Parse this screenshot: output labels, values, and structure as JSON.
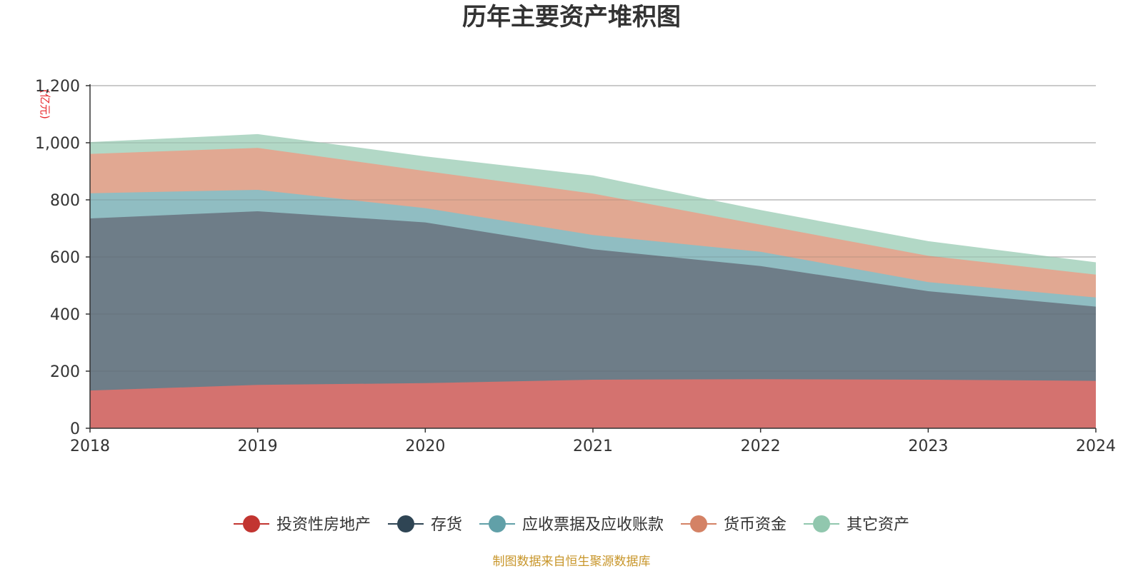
{
  "chart_data": {
    "type": "area",
    "stacked": true,
    "title": "历年主要资产堆积图",
    "unit_label": "(亿元)",
    "xlabel": "",
    "ylabel": "",
    "x": [
      "2018",
      "2019",
      "2020",
      "2021",
      "2022",
      "2023",
      "2024"
    ],
    "ylim": [
      0,
      1200
    ],
    "yticks": [
      0,
      200,
      400,
      600,
      800,
      1000,
      1200
    ],
    "ytick_labels": [
      "0",
      "200",
      "400",
      "600",
      "800",
      "1,000",
      "1,200"
    ],
    "grid": true,
    "legend_position": "bottom-center",
    "series": [
      {
        "name": "投资性房地产",
        "color": "#c23531",
        "fill": "#d4726f",
        "values": [
          132,
          152,
          158,
          170,
          172,
          170,
          166
        ]
      },
      {
        "name": "存货",
        "color": "#2f4554",
        "fill": "#6e7d88",
        "values": [
          603,
          608,
          563,
          457,
          396,
          310,
          260
        ]
      },
      {
        "name": "应收票据及应收账款",
        "color": "#61a0a8",
        "fill": "#90bdc2",
        "values": [
          88,
          75,
          50,
          50,
          50,
          32,
          32
        ]
      },
      {
        "name": "货币资金",
        "color": "#d48265",
        "fill": "#e1a892",
        "values": [
          138,
          147,
          130,
          145,
          95,
          92,
          80
        ]
      },
      {
        "name": "其它资产",
        "color": "#91c7ae",
        "fill": "#b2d8c6",
        "values": [
          40,
          47,
          50,
          62,
          50,
          50,
          42
        ]
      }
    ]
  },
  "source": {
    "text": "制图数据来自恒生聚源数据库"
  }
}
